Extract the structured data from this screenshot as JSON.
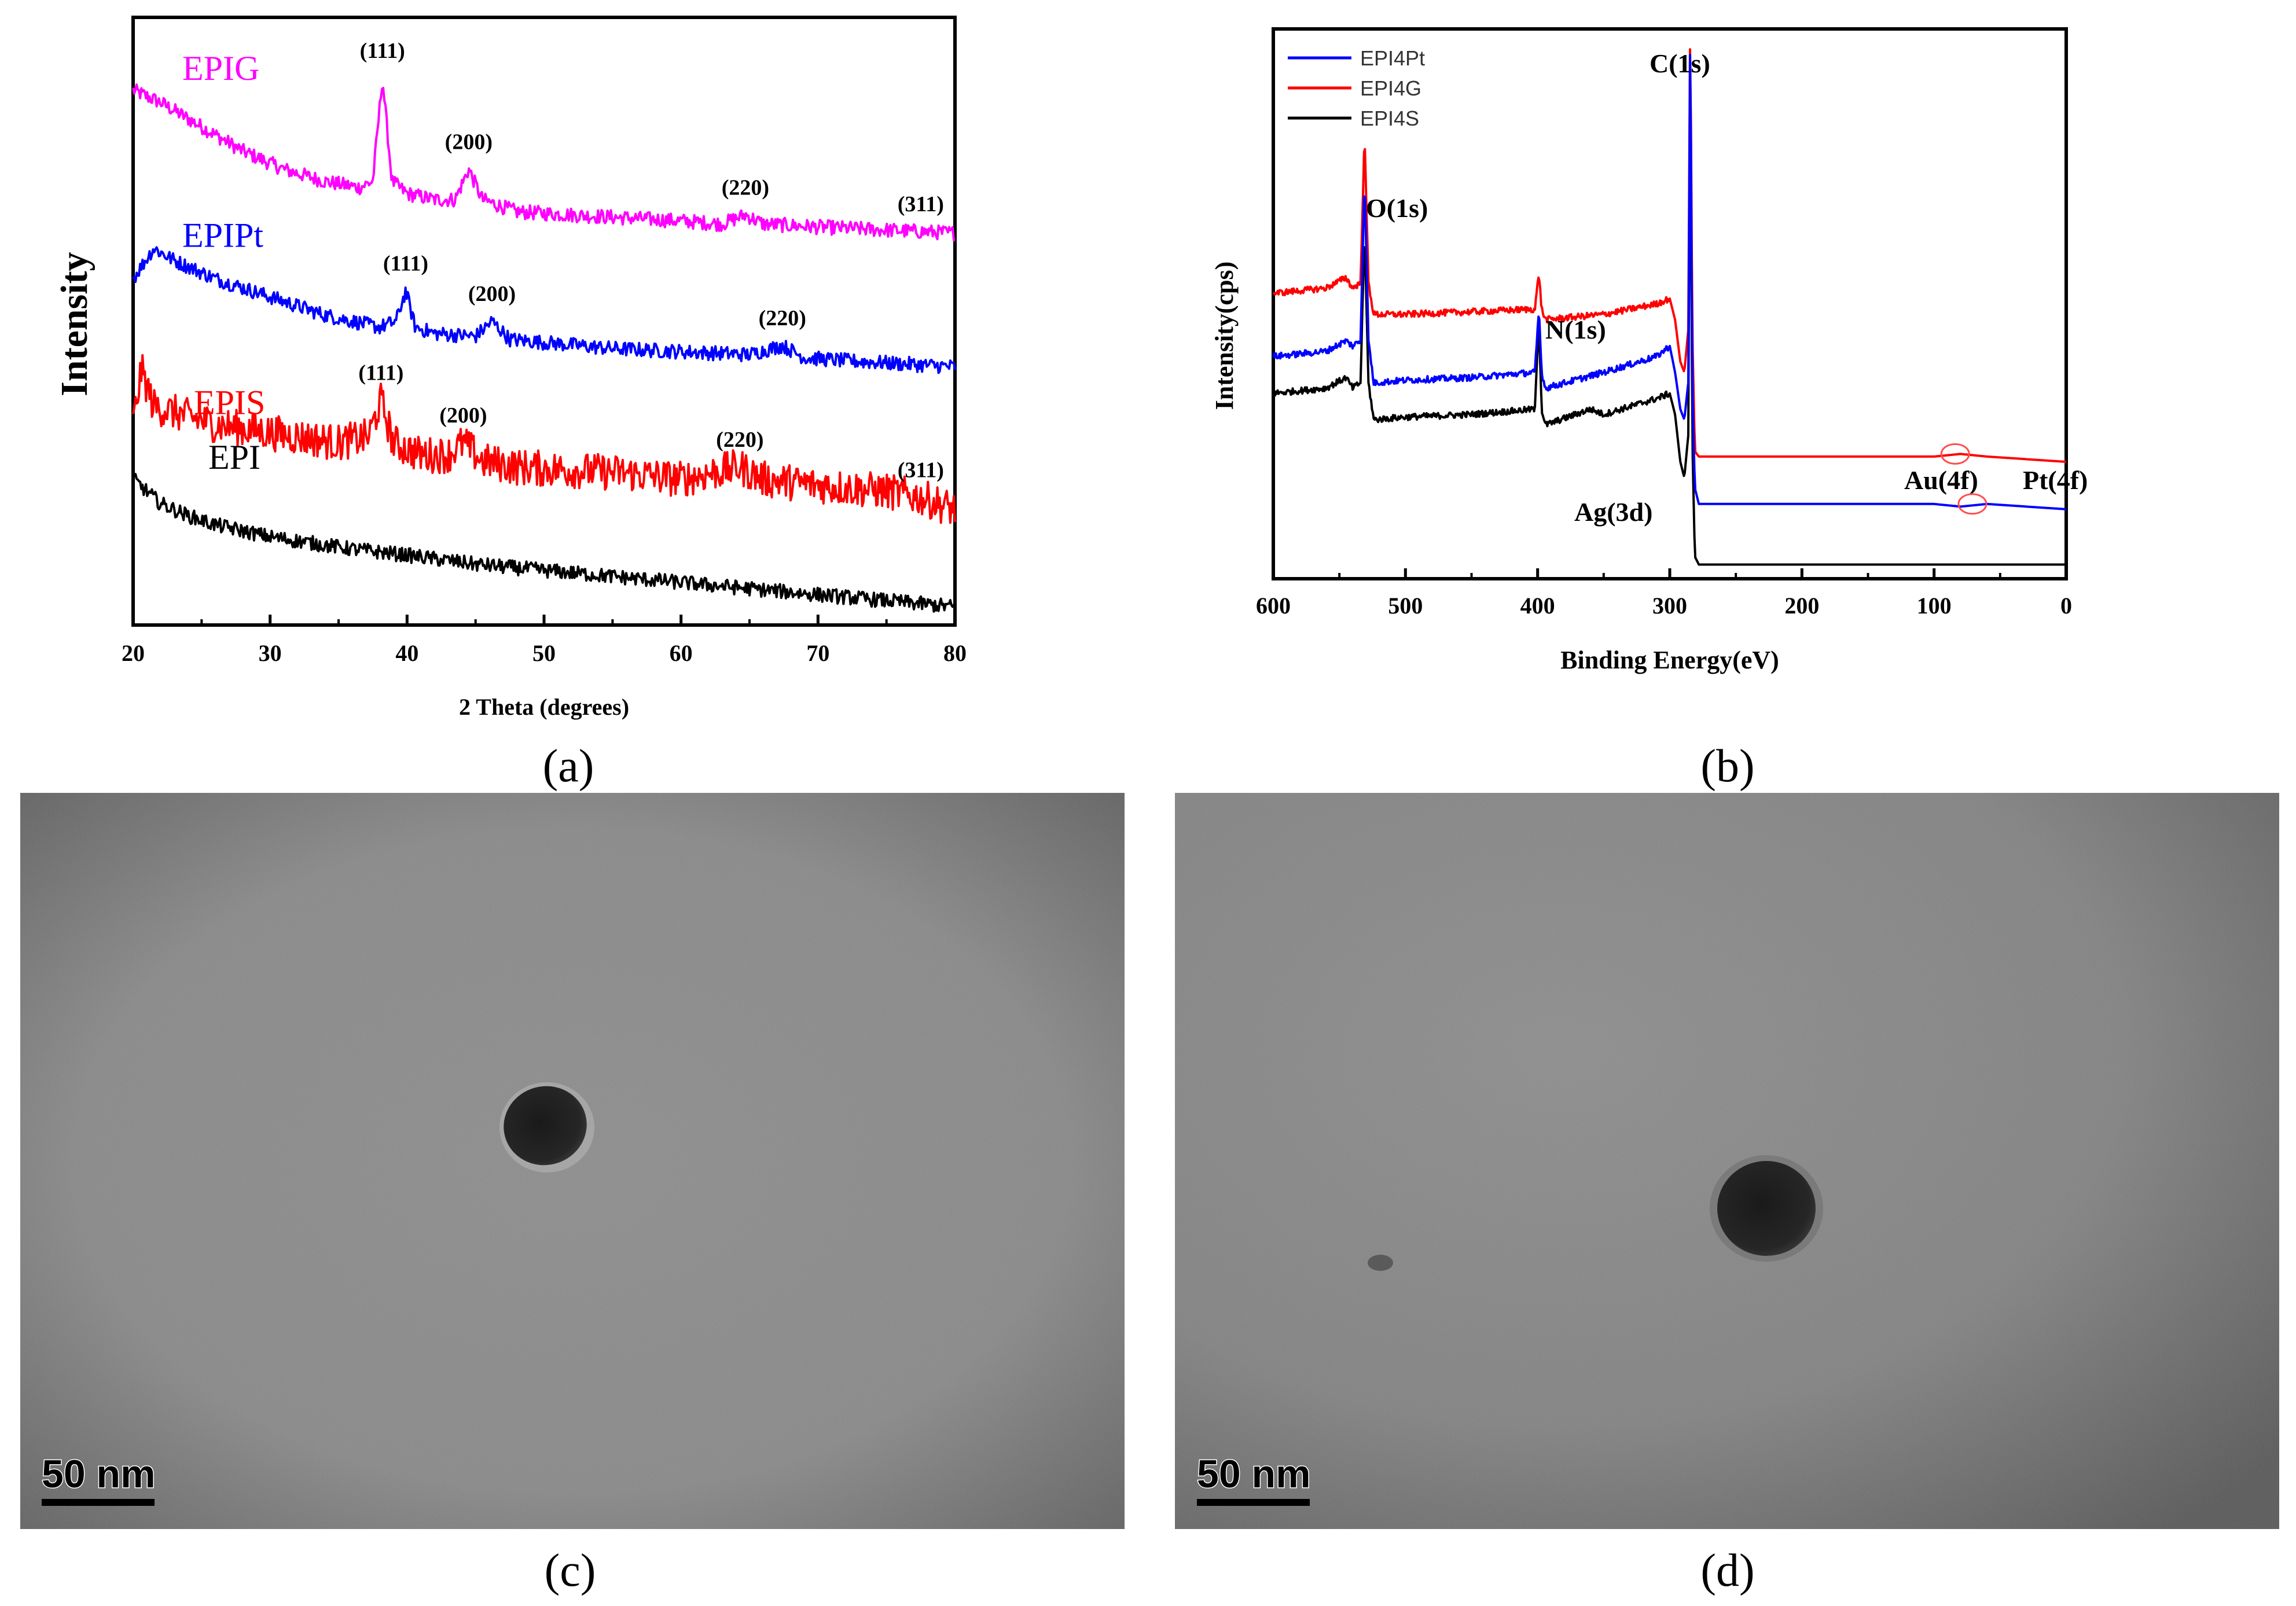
{
  "panels": {
    "a": {
      "caption": "(a)"
    },
    "b": {
      "caption": "(b)"
    },
    "c": {
      "caption": "(c)",
      "scale_bar": "50 nm"
    },
    "d": {
      "caption": "(d)",
      "scale_bar": "50 nm"
    }
  },
  "chart_data": [
    {
      "type": "line",
      "panel": "a",
      "title": "",
      "xlabel": "2 Theta (degrees)",
      "ylabel": "Intensity",
      "xlim": [
        20,
        80
      ],
      "xticks": [
        20,
        30,
        40,
        50,
        60,
        70,
        80
      ],
      "yticks": [],
      "grid": false,
      "legend": "inline labels",
      "series": [
        {
          "name": "EPIG",
          "color": "#ff00ff",
          "x": [
            20,
            22,
            25,
            28,
            31,
            34,
            36.5,
            37.5,
            38.2,
            38.9,
            40,
            42,
            43.5,
            44.5,
            45.5,
            48,
            52,
            56,
            60,
            63,
            64.7,
            66,
            70,
            75,
            80
          ],
          "y": [
            0.88,
            0.86,
            0.82,
            0.78,
            0.75,
            0.73,
            0.72,
            0.73,
            0.9,
            0.73,
            0.71,
            0.7,
            0.7,
            0.75,
            0.7,
            0.68,
            0.675,
            0.67,
            0.665,
            0.66,
            0.675,
            0.66,
            0.655,
            0.65,
            0.645
          ],
          "peaks": [
            {
              "x": 38.2,
              "label": "(111)"
            },
            {
              "x": 44.5,
              "label": "(200)"
            },
            {
              "x": 64.7,
              "label": "(220)"
            },
            {
              "x": 77.5,
              "label": "(311)"
            }
          ]
        },
        {
          "name": "EPIPt",
          "color": "#0000ff",
          "x": [
            20,
            21.5,
            23,
            26,
            30,
            34,
            38,
            39.2,
            39.9,
            40.6,
            42,
            45,
            46.2,
            47.5,
            50,
            55,
            60,
            65,
            67.4,
            69,
            72,
            76,
            80
          ],
          "y": [
            0.57,
            0.62,
            0.6,
            0.57,
            0.54,
            0.51,
            0.49,
            0.5,
            0.55,
            0.49,
            0.48,
            0.475,
            0.5,
            0.47,
            0.465,
            0.455,
            0.45,
            0.445,
            0.46,
            0.44,
            0.435,
            0.43,
            0.425
          ],
          "peaks": [
            {
              "x": 39.9,
              "label": "(111)"
            },
            {
              "x": 46.2,
              "label": "(200)"
            },
            {
              "x": 67.4,
              "label": "(220)"
            }
          ]
        },
        {
          "name": "EPIS",
          "color": "#ff0000",
          "x": [
            20,
            20.6,
            21.5,
            23,
            26,
            29,
            32,
            35,
            37.2,
            38.1,
            39,
            41,
            43,
            44.1,
            45.5,
            48,
            52,
            56,
            60,
            64.3,
            66,
            70,
            75,
            77.5,
            80
          ],
          "y": [
            0.33,
            0.42,
            0.36,
            0.35,
            0.33,
            0.32,
            0.31,
            0.3,
            0.31,
            0.37,
            0.3,
            0.28,
            0.28,
            0.3,
            0.27,
            0.26,
            0.255,
            0.25,
            0.24,
            0.26,
            0.24,
            0.23,
            0.22,
            0.21,
            0.19
          ],
          "peaks": [
            {
              "x": 38.1,
              "label": "(111)"
            },
            {
              "x": 44.1,
              "label": "(200)"
            },
            {
              "x": 64.3,
              "label": "(220)"
            },
            {
              "x": 77.5,
              "label": "(311)"
            }
          ]
        },
        {
          "name": "EPI",
          "color": "#000000",
          "x": [
            20,
            21,
            22,
            24,
            26,
            28,
            30,
            33,
            36,
            40,
            45,
            50,
            55,
            60,
            65,
            70,
            75,
            80
          ],
          "y": [
            0.24,
            0.22,
            0.2,
            0.18,
            0.165,
            0.155,
            0.145,
            0.135,
            0.125,
            0.115,
            0.1,
            0.09,
            0.08,
            0.07,
            0.06,
            0.05,
            0.04,
            0.03
          ],
          "peaks": []
        }
      ]
    },
    {
      "type": "line",
      "panel": "b",
      "title": "",
      "xlabel": "Binding Energy(eV)",
      "ylabel": "Intensity(cps)",
      "xlim": [
        600,
        0
      ],
      "xticks": [
        600,
        500,
        400,
        300,
        200,
        100,
        0
      ],
      "yticks": [],
      "grid": false,
      "legend": "top-left",
      "series": [
        {
          "name": "EPI4Pt",
          "color": "#0000ff",
          "x": [
            600,
            560,
            545,
            540,
            534,
            531,
            528,
            524,
            500,
            450,
            402,
            399,
            397,
            394,
            350,
            310,
            300,
            296,
            292,
            289,
            286,
            284.5,
            283,
            281,
            278,
            276,
            200,
            100,
            80,
            60,
            0
          ],
          "y": [
            0.4,
            0.41,
            0.43,
            0.42,
            0.43,
            0.74,
            0.43,
            0.35,
            0.355,
            0.36,
            0.37,
            0.49,
            0.37,
            0.34,
            0.37,
            0.4,
            0.42,
            0.37,
            0.3,
            0.28,
            0.35,
            1.05,
            0.35,
            0.15,
            0.12,
            0.12,
            0.12,
            0.12,
            0.115,
            0.12,
            0.11
          ]
        },
        {
          "name": "EPI4G",
          "color": "#ff0000",
          "x": [
            600,
            560,
            545,
            540,
            534,
            531,
            528,
            524,
            500,
            450,
            402,
            399,
            397,
            394,
            350,
            310,
            300,
            296,
            292,
            289,
            286,
            284.5,
            283,
            281,
            278,
            276,
            200,
            100,
            80,
            60,
            0
          ],
          "y": [
            0.52,
            0.53,
            0.55,
            0.53,
            0.54,
            0.82,
            0.54,
            0.48,
            0.48,
            0.485,
            0.49,
            0.56,
            0.49,
            0.47,
            0.48,
            0.5,
            0.51,
            0.47,
            0.39,
            0.37,
            0.45,
            1.05,
            0.45,
            0.22,
            0.21,
            0.21,
            0.21,
            0.21,
            0.215,
            0.21,
            0.2
          ]
        },
        {
          "name": "EPI4S",
          "color": "#000000",
          "x": [
            600,
            560,
            545,
            540,
            534,
            531,
            528,
            524,
            500,
            450,
            402,
            399,
            397,
            394,
            360,
            350,
            310,
            300,
            296,
            292,
            289,
            286,
            284.5,
            283,
            281,
            278,
            276,
            200,
            100,
            0
          ],
          "y": [
            0.33,
            0.34,
            0.36,
            0.34,
            0.35,
            0.64,
            0.35,
            0.28,
            0.285,
            0.29,
            0.3,
            0.48,
            0.3,
            0.27,
            0.3,
            0.29,
            0.32,
            0.33,
            0.29,
            0.2,
            0.17,
            0.25,
            0.98,
            0.25,
            0.02,
            0.005,
            0.005,
            0.005,
            0.005,
            0.005
          ]
        }
      ],
      "annotations": [
        {
          "label": "C(1s)",
          "x": 285
        },
        {
          "label": "O(1s)",
          "x": 531
        },
        {
          "label": "N(1s)",
          "x": 399
        },
        {
          "label": "Ag(3d)",
          "x": 368
        },
        {
          "label": "Au(4f)",
          "x": 84
        },
        {
          "label": "Pt(4f)",
          "x": 71
        }
      ]
    }
  ]
}
